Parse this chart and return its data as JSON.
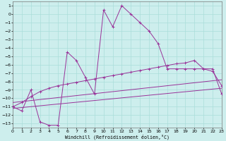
{
  "xlabel": "Windchill (Refroidissement éolien,°C)",
  "background_color": "#cdeeed",
  "grid_color": "#aaddda",
  "line_color": "#993399",
  "xlim": [
    0,
    23
  ],
  "ylim": [
    -13.5,
    1.5
  ],
  "yticks": [
    1,
    0,
    -1,
    -2,
    -3,
    -4,
    -5,
    -6,
    -7,
    -8,
    -9,
    -10,
    -11,
    -12,
    -13
  ],
  "xticks": [
    0,
    1,
    2,
    3,
    4,
    5,
    6,
    7,
    8,
    9,
    10,
    11,
    12,
    13,
    14,
    15,
    16,
    17,
    18,
    19,
    20,
    21,
    22,
    23
  ],
  "main_line_x": [
    0,
    1,
    2,
    3,
    4,
    5,
    6,
    7,
    8,
    9,
    10,
    11,
    12,
    13,
    14,
    15,
    16,
    17,
    18,
    19,
    20,
    21,
    22,
    23
  ],
  "main_line_y": [
    -11.0,
    -11.5,
    -9.0,
    -12.8,
    -13.2,
    -13.2,
    -4.5,
    -5.5,
    -7.5,
    -9.5,
    0.5,
    -1.5,
    1.0,
    0.0,
    -1.0,
    -2.0,
    -3.5,
    -6.5,
    -6.5,
    -6.5,
    -6.5,
    -6.5,
    -6.5,
    -9.5
  ],
  "line2_x": [
    0,
    1,
    2,
    3,
    4,
    5,
    6,
    7,
    8,
    9,
    10,
    11,
    12,
    13,
    14,
    15,
    16,
    17,
    18,
    19,
    20,
    21,
    22,
    23
  ],
  "line2_y": [
    -11.0,
    -10.5,
    -9.8,
    -9.2,
    -8.8,
    -8.5,
    -8.3,
    -8.1,
    -7.9,
    -7.7,
    -7.5,
    -7.3,
    -7.1,
    -6.9,
    -6.7,
    -6.5,
    -6.3,
    -6.1,
    -5.9,
    -5.8,
    -5.5,
    -6.5,
    -6.8,
    -8.5
  ],
  "line3_x": [
    0,
    23
  ],
  "line3_y": [
    -11.2,
    -8.8
  ],
  "line4_x": [
    0,
    23
  ],
  "line4_y": [
    -10.5,
    -7.8
  ]
}
